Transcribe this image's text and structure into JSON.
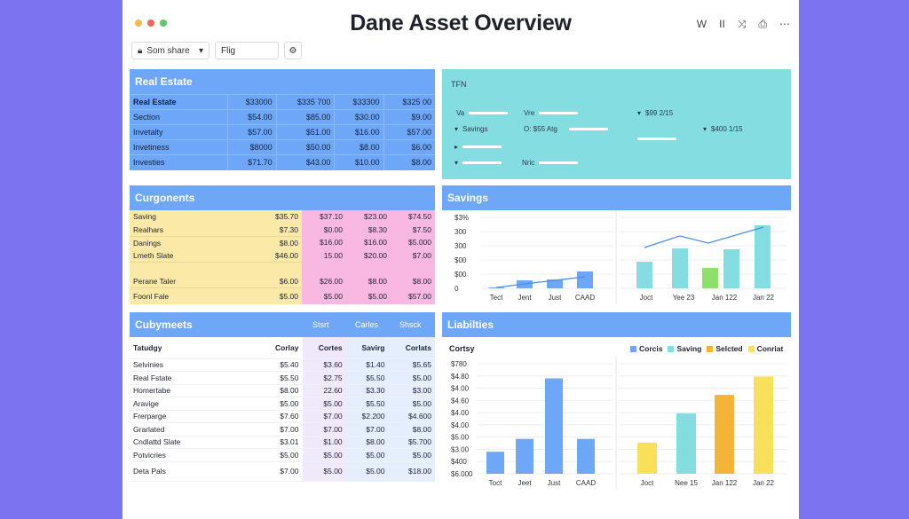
{
  "window": {
    "title": "Dane Asset Overview",
    "dot_colors": [
      "#f6b94a",
      "#f0645a",
      "#5fc66c"
    ],
    "icons": [
      "W",
      "II",
      "⤨",
      "⎙",
      "⋯"
    ]
  },
  "toolbar": {
    "share_label": "Som share",
    "filter_value": "Flig"
  },
  "real_estate": {
    "title": "Real Estate",
    "header": [
      "Real Estate",
      "$33000",
      "$335 700",
      "$33300",
      "$325 00"
    ],
    "rows": [
      [
        "Section",
        "$54.00",
        "$85.00",
        "$30.00",
        "$9.00"
      ],
      [
        "Invetalty",
        "$57.00",
        "$51.00",
        "$16.00",
        "$57.00"
      ],
      [
        "Invetiness",
        "$8000",
        "$50.00",
        "$8.00",
        "$6.00"
      ],
      [
        "Investies",
        "$71.70",
        "$43.00",
        "$10.00",
        "$8.00"
      ]
    ]
  },
  "tfn": {
    "title": "TFN",
    "items": [
      {
        "label": "Va",
        "value": ""
      },
      {
        "label": "Vre",
        "value": ""
      },
      {
        "label": "",
        "value": "$99 2/15"
      },
      {
        "label": "Savings",
        "value": ""
      },
      {
        "label": "O: $55 Atg",
        "value": ""
      },
      {
        "label": "",
        "value": "$400 1/15"
      },
      {
        "label": "",
        "value": ""
      },
      {
        "label": "Nric",
        "value": ""
      }
    ]
  },
  "components": {
    "title": "Curgonents",
    "rows": [
      [
        "Saving",
        "$35.70",
        "$37.10",
        "$23.00",
        "$74.50"
      ],
      [
        "Realhars",
        "$7.30",
        "$0.00",
        "$8.30",
        "$7.50"
      ],
      [
        "Danings",
        "$8.00",
        "$16.00",
        "$16.00",
        "$5.000"
      ],
      [
        "Lmeth Slate",
        "$46.00",
        "15.00",
        "$20.00",
        "$7.00"
      ],
      [
        "Perane Taler",
        "$6.00",
        "$26.00",
        "$8.00",
        "$8.00"
      ],
      [
        "Foonl Fale",
        "$5.00",
        "$5.00",
        "$5.00",
        "$57.00"
      ]
    ]
  },
  "savings": {
    "title": "Savings",
    "left_yticks": [
      "$3%",
      "300",
      "300",
      "$00",
      "$00",
      "0"
    ],
    "left_categories": [
      "Tect",
      "Jent",
      "Just",
      "CAAD"
    ],
    "right_categories": [
      "Joct",
      "Yee 23",
      "Jan 122",
      "Jan 22"
    ]
  },
  "submets": {
    "title": "Cubymeets",
    "col_tags": [
      "Stsrt",
      "Carles",
      "Shsck"
    ],
    "header": [
      "Tatudgy",
      "Corlay",
      "Cortes",
      "Savirg",
      "Corlats"
    ],
    "rows": [
      [
        "Selvinies",
        "$5.40",
        "$3.60",
        "$1.40",
        "$5.65"
      ],
      [
        "Real Fstate",
        "$5.50",
        "$2.75",
        "$5.50",
        "$5.00"
      ],
      [
        "Homertabe",
        "$8.00",
        "22.60",
        "$3.30",
        "$3.00"
      ],
      [
        "Aravige",
        "$5.00",
        "$5.00",
        "$5.50",
        "$5.00"
      ],
      [
        "Frerparge",
        "$7.60",
        "$7.00",
        "$2.200",
        "$4.600"
      ],
      [
        "Grarlated",
        "$7.00",
        "$7.00",
        "$7.00",
        "$8.00"
      ],
      [
        "Cndlattd Slate",
        "$3.01",
        "$1.00",
        "$8.00",
        "$5.700"
      ],
      [
        "Potvicries",
        "$5.00",
        "$5.00",
        "$5.00",
        "$5.00"
      ],
      [
        "Deta Pals",
        "$7.00",
        "$5.00",
        "$5.00",
        "$18.00"
      ]
    ]
  },
  "liabilities": {
    "title": "Liabilties",
    "left_label": "Cortsy",
    "left_yticks": [
      "$780",
      "$4.80",
      "$4.00",
      "$4.60",
      "$4.00",
      "$4.00",
      "$5.00",
      "$3.00",
      "$400",
      "$6.000"
    ],
    "left_categories": [
      "Toct",
      "Jeet",
      "Just",
      "CAAD"
    ],
    "right_categories": [
      "Joct",
      "Nee 15",
      "Jan 122",
      "Jan 22"
    ],
    "legend": [
      {
        "label": "Corcis",
        "color": "#6ea6f8"
      },
      {
        "label": "Saving",
        "color": "#84dde0"
      },
      {
        "label": "Selcted",
        "color": "#f5b338"
      },
      {
        "label": "Conriat",
        "color": "#f8e05a"
      }
    ]
  },
  "chart_data": [
    {
      "type": "bar",
      "title": "Savings",
      "categories": [
        "Tect",
        "Jent",
        "Just",
        "CAAD"
      ],
      "values": [
        5,
        45,
        50,
        95
      ],
      "overlay_line": [
        5,
        25,
        45,
        65
      ],
      "ylim": [
        0,
        400
      ],
      "grid": true
    },
    {
      "type": "bar",
      "title": "Savings",
      "categories": [
        "Joct",
        "Yee 23",
        "Jan 122",
        "Jan 22"
      ],
      "series": [
        {
          "values": [
            150,
            225,
            115,
            220
          ]
        }
      ],
      "bar_colors": [
        "#84dde0",
        "#84dde0",
        "#8ee06a",
        "#84dde0"
      ],
      "extra_bar": 355,
      "overlay_line": [
        230,
        295,
        255,
        345
      ],
      "ylim": [
        0,
        400
      ],
      "grid": true
    },
    {
      "type": "bar",
      "title": "Liabilties",
      "categories": [
        "Toct",
        "Jeet",
        "Just",
        "CAAD"
      ],
      "values": [
        120,
        190,
        520,
        190
      ],
      "ylim": [
        0,
        600
      ],
      "grid": true
    },
    {
      "type": "bar",
      "title": "Liabilties",
      "categories": [
        "Joct",
        "Nee 15",
        "Jan 122",
        "Jan 22"
      ],
      "values": [
        170,
        330,
        430,
        530
      ],
      "bar_colors": [
        "#f8e05a",
        "#84dde0",
        "#f5b338",
        "#f8e05a"
      ],
      "ylim": [
        0,
        600
      ],
      "grid": true
    }
  ]
}
